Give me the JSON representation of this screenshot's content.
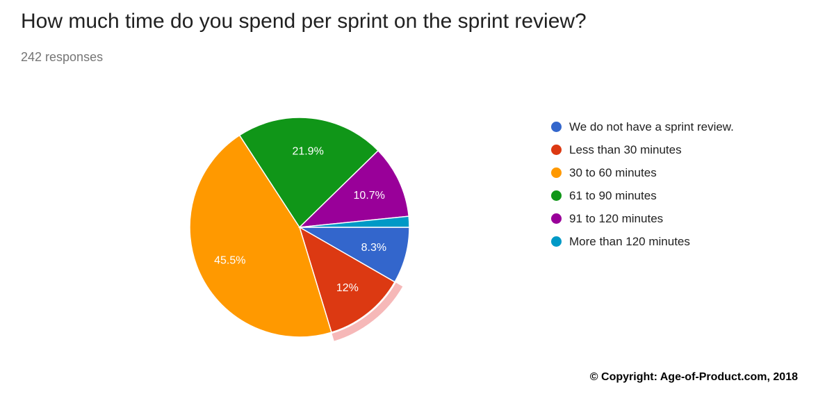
{
  "chart_data": {
    "type": "pie",
    "title": "How much time do you spend per sprint on the sprint review?",
    "subtitle": "242 responses",
    "legend_position": "right",
    "direction": "clockwise",
    "start_angle_deg": 90,
    "label_color": "#ffffff",
    "slices": [
      {
        "label": "We do not have a sprint review.",
        "value_pct": 8.3,
        "display": "8.3%",
        "color": "#3366CC",
        "highlighted": false
      },
      {
        "label": "Less than 30 minutes",
        "value_pct": 12,
        "display": "12%",
        "color": "#DC3912",
        "highlighted": true,
        "highlight_color": "#F6B8B8"
      },
      {
        "label": "30 to 60 minutes",
        "value_pct": 45.5,
        "display": "45.5%",
        "color": "#FF9900",
        "highlighted": false
      },
      {
        "label": "61 to 90 minutes",
        "value_pct": 21.9,
        "display": "21.9%",
        "color": "#109618",
        "highlighted": false
      },
      {
        "label": "91 to 120 minutes",
        "value_pct": 10.7,
        "display": "10.7%",
        "color": "#990099",
        "highlighted": false
      },
      {
        "label": "More than 120 minutes",
        "value_pct": 1.6,
        "display": "",
        "color": "#0099C6",
        "highlighted": false
      }
    ]
  },
  "footer": {
    "copyright": "© Copyright: Age-of-Product.com, 2018"
  }
}
